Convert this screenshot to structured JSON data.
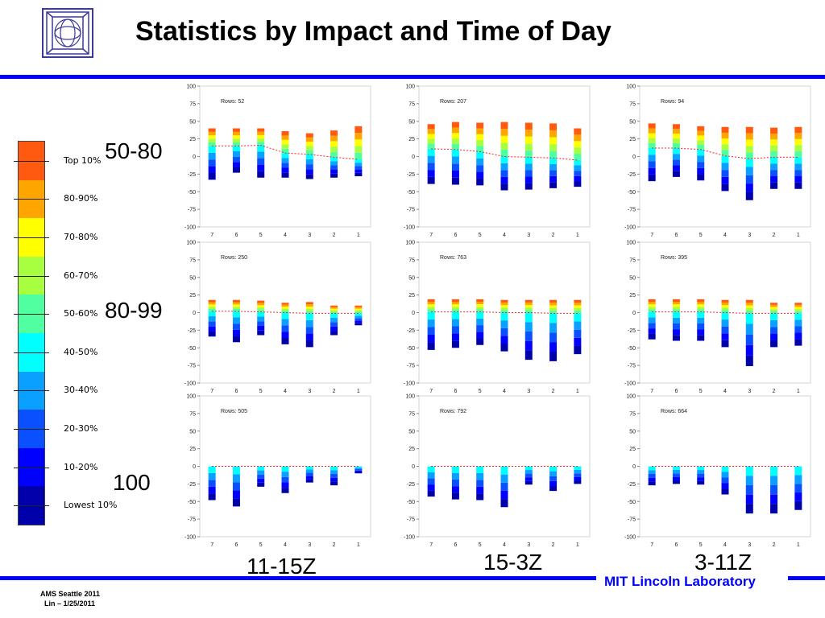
{
  "title": "Statistics by Impact and Time of Day",
  "logo": {
    "icon": "mit-ll-logo-icon"
  },
  "impact_groups": [
    "50-80",
    "80-99",
    "100"
  ],
  "time_groups": [
    "11-15Z",
    "15-3Z",
    "3-11Z"
  ],
  "legend": {
    "labels": [
      "Top 10%",
      "80-90%",
      "70-80%",
      "60-70%",
      "50-60%",
      "40-50%",
      "30-40%",
      "20-30%",
      "10-20%",
      "Lowest 10%"
    ],
    "colors": [
      "#ff5a10",
      "#ffa500",
      "#ffff00",
      "#a8ff40",
      "#50ffa0",
      "#00ffff",
      "#0aa0ff",
      "#0a50ff",
      "#0000ff",
      "#0000aa"
    ]
  },
  "footer": {
    "lab_name": "MIT Lincoln Laboratory",
    "line1": "AMS Seattle 2011",
    "line2": "Lin – 1/25/2011"
  },
  "chart_data": [
    {
      "type": "bar",
      "rows_label": "Rows: 52",
      "categories": [
        "7",
        "6",
        "5",
        "4",
        "3",
        "2",
        "1"
      ],
      "top": [
        40,
        40,
        40,
        36,
        33,
        37,
        43
      ],
      "bottom": [
        -33,
        -23,
        -30,
        -30,
        -32,
        -30,
        -28
      ],
      "median": [
        15,
        15,
        16,
        5,
        3,
        -1,
        -4
      ],
      "ylim": [
        -100,
        100
      ],
      "yticks": [
        100,
        75,
        50,
        25,
        0,
        -25,
        -50,
        -75,
        -100
      ]
    },
    {
      "type": "bar",
      "rows_label": "Rows: 207",
      "categories": [
        "7",
        "6",
        "5",
        "4",
        "3",
        "2",
        "1"
      ],
      "top": [
        46,
        49,
        48,
        49,
        48,
        47,
        40
      ],
      "bottom": [
        -39,
        -40,
        -41,
        -48,
        -47,
        -45,
        -43
      ],
      "median": [
        11,
        10,
        7,
        0,
        -1,
        -2,
        -5
      ],
      "ylim": [
        -100,
        100
      ],
      "yticks": [
        100,
        75,
        50,
        25,
        0,
        -25,
        -50,
        -75,
        -100
      ]
    },
    {
      "type": "bar",
      "rows_label": "Rows: 94",
      "categories": [
        "7",
        "6",
        "5",
        "4",
        "3",
        "2",
        "1"
      ],
      "top": [
        47,
        46,
        43,
        42,
        42,
        41,
        42
      ],
      "bottom": [
        -35,
        -29,
        -34,
        -49,
        -62,
        -46,
        -46
      ],
      "median": [
        12,
        12,
        10,
        1,
        -3,
        -1,
        -1
      ],
      "ylim": [
        -100,
        100
      ],
      "yticks": [
        100,
        75,
        50,
        25,
        0,
        -25,
        -50,
        -75,
        -100
      ]
    },
    {
      "type": "bar",
      "rows_label": "Rows: 250",
      "categories": [
        "7",
        "6",
        "5",
        "4",
        "3",
        "2",
        "1"
      ],
      "top": [
        18,
        18,
        17,
        14,
        15,
        10,
        10
      ],
      "bottom": [
        -34,
        -42,
        -32,
        -45,
        -49,
        -32,
        -18
      ],
      "median": [
        2,
        2,
        1,
        0,
        -1,
        -1,
        -1
      ],
      "ylim": [
        -100,
        100
      ],
      "yticks": [
        100,
        75,
        50,
        25,
        0,
        -25,
        -50,
        -75,
        -100
      ]
    },
    {
      "type": "bar",
      "rows_label": "Rows: 763",
      "categories": [
        "7",
        "6",
        "5",
        "4",
        "3",
        "2",
        "1"
      ],
      "top": [
        19,
        19,
        19,
        18,
        18,
        18,
        18
      ],
      "bottom": [
        -53,
        -50,
        -46,
        -55,
        -67,
        -69,
        -59
      ],
      "median": [
        1,
        1,
        1,
        0,
        0,
        -1,
        -1
      ],
      "ylim": [
        -100,
        100
      ],
      "yticks": [
        100,
        75,
        50,
        25,
        0,
        -25,
        -50,
        -75,
        -100
      ]
    },
    {
      "type": "bar",
      "rows_label": "Rows: 395",
      "categories": [
        "7",
        "6",
        "5",
        "4",
        "3",
        "2",
        "1"
      ],
      "top": [
        19,
        19,
        19,
        18,
        18,
        14,
        14
      ],
      "bottom": [
        -38,
        -40,
        -40,
        -49,
        -76,
        -49,
        -47
      ],
      "median": [
        1,
        1,
        1,
        0,
        -1,
        -1,
        -1
      ],
      "ylim": [
        -100,
        100
      ],
      "yticks": [
        100,
        75,
        50,
        25,
        0,
        -25,
        -50,
        -75,
        -100
      ]
    },
    {
      "type": "bar",
      "rows_label": "Rows: 505",
      "categories": [
        "7",
        "6",
        "5",
        "4",
        "3",
        "2",
        "1"
      ],
      "top": [
        0,
        0,
        0,
        0,
        0,
        0,
        0
      ],
      "bottom": [
        -48,
        -57,
        -29,
        -38,
        -23,
        -27,
        -10
      ],
      "median": [
        0,
        0,
        0,
        0,
        0,
        0,
        0
      ],
      "ylim": [
        -100,
        100
      ],
      "yticks": [
        100,
        75,
        50,
        25,
        0,
        -25,
        -50,
        -75,
        -100
      ]
    },
    {
      "type": "bar",
      "rows_label": "Rows: 792",
      "categories": [
        "7",
        "6",
        "5",
        "4",
        "3",
        "2",
        "1"
      ],
      "top": [
        0,
        0,
        0,
        0,
        0,
        0,
        0
      ],
      "bottom": [
        -43,
        -47,
        -48,
        -58,
        -26,
        -35,
        -25
      ],
      "median": [
        0,
        0,
        0,
        0,
        0,
        0,
        0
      ],
      "ylim": [
        -100,
        100
      ],
      "yticks": [
        100,
        75,
        50,
        25,
        0,
        -25,
        -50,
        -75,
        -100
      ]
    },
    {
      "type": "bar",
      "rows_label": "Rows: 664",
      "categories": [
        "7",
        "6",
        "5",
        "4",
        "3",
        "2",
        "1"
      ],
      "top": [
        0,
        0,
        0,
        0,
        0,
        0,
        0
      ],
      "bottom": [
        -27,
        -25,
        -26,
        -40,
        -67,
        -67,
        -62
      ],
      "median": [
        0,
        0,
        0,
        0,
        0,
        0,
        0
      ],
      "ylim": [
        -100,
        100
      ],
      "yticks": [
        100,
        75,
        50,
        25,
        0,
        -25,
        -50,
        -75,
        -100
      ]
    }
  ]
}
